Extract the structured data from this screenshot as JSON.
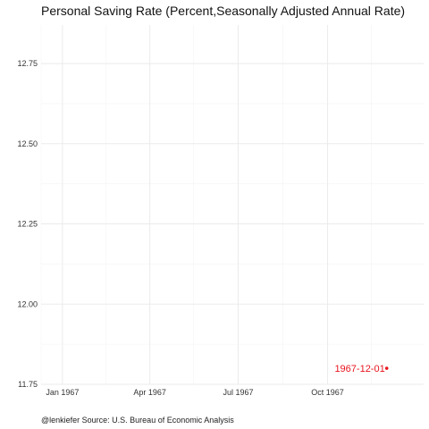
{
  "chart_data": {
    "type": "line",
    "title": "Personal Saving Rate (Percent,Seasonally Adjusted Annual Rate)",
    "caption": "@lenkiefer Source: U.S. Bureau of Economic Analysis",
    "xlabel": "",
    "ylabel": "",
    "x_ticks": [
      "Jan 1967",
      "Apr 1967",
      "Jul 1967",
      "Oct 1967"
    ],
    "y_ticks": [
      "11.75",
      "12.00",
      "12.25",
      "12.50",
      "12.75"
    ],
    "ylim": [
      11.75,
      12.87
    ],
    "xlim": [
      "1966-12-10",
      "1968-01-08"
    ],
    "grid": true,
    "series": [
      {
        "x": [
          "1967-12-01"
        ],
        "y": [
          11.8
        ],
        "color": "#e8141e"
      }
    ],
    "annotations": [
      {
        "text": "1967-12-01",
        "x": "1967-12-01",
        "y": 11.8,
        "color": "#e8141e"
      }
    ]
  }
}
